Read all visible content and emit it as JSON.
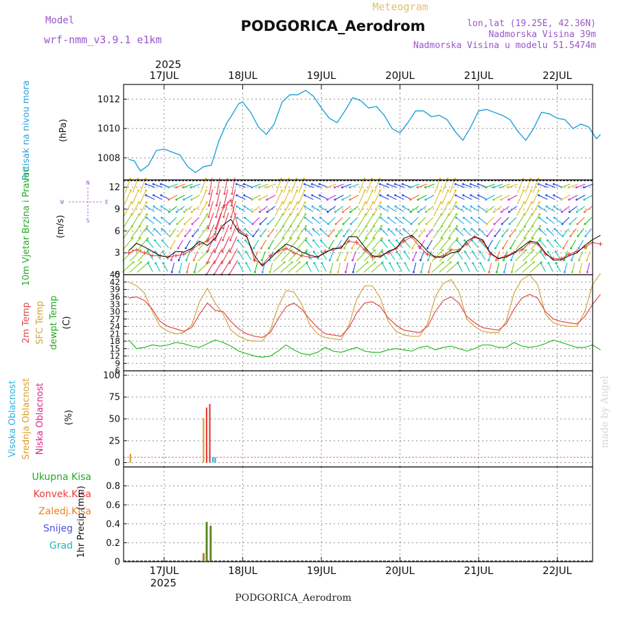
{
  "header": {
    "model_label": "Model",
    "model_name": "wrf-nmm_v3.9.1 e1km",
    "station": "PODGORICA_Aerodrom",
    "kind": "Meteogram",
    "lonlat": "lon,lat (19.25E, 42.36N)",
    "altitude": "Nadmorska Visina 39m",
    "model_altitude": "Nadmorska Visina u modelu 51.5474m"
  },
  "footer": {
    "station": "PODGORICA_Aerodrom"
  },
  "watermark": "made by Angel",
  "colors": {
    "pressure": "#1ea0dc",
    "wind_speed": "#000000",
    "gust": "#e83a3a",
    "t2m": "#e04848",
    "sfc": "#d2a33c",
    "dewpt": "#22bb22",
    "high_cloud": "#29b0e0",
    "mid_cloud": "#d8a030",
    "low_cloud": "#e83a3a",
    "total_rain": "#3cb53c",
    "conv_rain": "#e83a3a",
    "frozen": "#f08020",
    "snow": "#5050dd",
    "graupel": "#20b8b0"
  },
  "chart_data": [
    {
      "type": "line",
      "panel": "pressure",
      "ylabel": "Pritisak na nivou mora",
      "unit": "(hPa)",
      "ylim": [
        1006.5,
        1013
      ],
      "yticks": [
        "1008",
        "1010",
        "1012"
      ],
      "top_axis": {
        "year": "2025",
        "days": [
          "17JUL",
          "18JUL",
          "19JUL",
          "20JUL",
          "21JUL",
          "22JUL"
        ]
      },
      "grid": true,
      "x": [
        -0.45,
        -0.38,
        -0.3,
        -0.2,
        -0.1,
        0.0,
        0.05,
        0.1,
        0.2,
        0.3,
        0.4,
        0.5,
        0.6,
        0.7,
        0.75,
        0.8,
        0.85,
        0.95,
        1.0,
        1.1,
        1.2,
        1.3,
        1.4,
        1.5,
        1.6,
        1.7,
        1.8,
        1.9,
        2.0,
        2.1,
        2.2,
        2.3,
        2.4,
        2.5,
        2.6,
        2.7,
        2.8,
        2.9,
        3.0,
        3.1,
        3.2,
        3.3,
        3.4,
        3.5,
        3.6,
        3.7,
        3.8,
        3.9,
        4.0,
        4.1,
        4.2,
        4.3,
        4.4,
        4.5,
        4.6,
        4.7,
        4.8,
        4.9,
        5.0,
        5.1,
        5.2,
        5.3,
        5.4,
        5.5,
        5.55
      ],
      "series": [
        {
          "values": [
            1007.9,
            1007.8,
            1007.1,
            1007.5,
            1008.5,
            1008.6,
            1008.5,
            1008.4,
            1008.2,
            1007.4,
            1007.0,
            1007.4,
            1007.5,
            1009.2,
            1009.8,
            1010.4,
            1010.8,
            1011.7,
            1011.8,
            1011.1,
            1010.1,
            1009.6,
            1010.3,
            1011.8,
            1012.3,
            1012.3,
            1012.6,
            1012.2,
            1011.4,
            1010.7,
            1010.4,
            1011.2,
            1012.1,
            1011.9,
            1011.4,
            1011.5,
            1010.9,
            1010.0,
            1009.7,
            1010.4,
            1011.2,
            1011.2,
            1010.8,
            1010.9,
            1010.6,
            1009.8,
            1009.2,
            1010.1,
            1011.2,
            1011.3,
            1011.1,
            1010.9,
            1010.6,
            1009.8,
            1009.2,
            1010.0,
            1011.1,
            1011.0,
            1010.7,
            1010.6,
            1010.0,
            1010.3,
            1010.1,
            1009.3,
            1009.6
          ]
        }
      ]
    },
    {
      "type": "line",
      "panel": "wind",
      "ylabel": "10m Vjetar Brzina i Pravac",
      "unit": "(m/s)",
      "compass": {
        "n": "N",
        "s": "S",
        "e": "E",
        "w": "W"
      },
      "ylim": [
        0,
        13
      ],
      "yticks": [
        "0",
        "3",
        "6",
        "9",
        "12"
      ],
      "grid": true,
      "x": [
        -0.45,
        -0.35,
        -0.25,
        -0.15,
        -0.05,
        0.05,
        0.15,
        0.25,
        0.35,
        0.45,
        0.55,
        0.65,
        0.75,
        0.85,
        0.95,
        1.05,
        1.15,
        1.25,
        1.35,
        1.45,
        1.55,
        1.65,
        1.75,
        1.85,
        1.95,
        2.05,
        2.15,
        2.25,
        2.35,
        2.45,
        2.55,
        2.65,
        2.75,
        2.85,
        2.95,
        3.05,
        3.15,
        3.25,
        3.35,
        3.45,
        3.55,
        3.65,
        3.75,
        3.85,
        3.95,
        4.05,
        4.15,
        4.25,
        4.35,
        4.45,
        4.55,
        4.65,
        4.75,
        4.85,
        4.95,
        5.05,
        5.15,
        5.25,
        5.35,
        5.45,
        5.55
      ],
      "series": [
        {
          "values": [
            3.3,
            4.3,
            3.8,
            3.2,
            2.6,
            2.4,
            3.2,
            3.1,
            3.6,
            4.6,
            4.0,
            5.0,
            6.8,
            7.6,
            5.8,
            5.2,
            2.6,
            1.2,
            2.2,
            3.3,
            4.2,
            3.8,
            3.1,
            2.7,
            2.4,
            3.0,
            3.6,
            3.6,
            5.2,
            5.2,
            3.8,
            2.6,
            2.4,
            3.2,
            3.6,
            5.0,
            5.4,
            4.4,
            3.2,
            2.4,
            2.4,
            3.0,
            3.2,
            4.6,
            5.2,
            4.8,
            3.0,
            2.2,
            2.4,
            3.0,
            3.8,
            4.6,
            4.4,
            3.0,
            2.0,
            2.0,
            2.6,
            3.0,
            4.0,
            4.8,
            5.4
          ]
        },
        {
          "values": [
            3.0,
            3.4,
            3.0,
            2.6,
            2.6,
            2.4,
            2.6,
            2.8,
            3.4,
            4.2,
            4.6,
            5.6,
            9.2,
            10.2,
            6.2,
            5.4,
            2.0,
            1.4,
            2.6,
            3.2,
            3.6,
            3.0,
            2.6,
            2.4,
            2.4,
            3.2,
            3.4,
            3.8,
            4.6,
            4.4,
            3.4,
            2.4,
            2.6,
            3.0,
            3.6,
            4.6,
            5.2,
            3.8,
            2.8,
            2.4,
            2.6,
            3.4,
            3.4,
            4.2,
            5.2,
            4.6,
            2.8,
            2.2,
            2.6,
            3.0,
            3.4,
            4.4,
            4.2,
            2.8,
            2.2,
            2.2,
            2.8,
            3.2,
            3.8,
            4.4,
            4.2
          ]
        }
      ]
    },
    {
      "type": "line",
      "panel": "temperature",
      "ylabel_t2m": "2m Temp",
      "ylabel_sfc": "SFC Temp",
      "ylabel_dewpt": "dewpt Temp",
      "unit": "(C)",
      "ylim": [
        6,
        45
      ],
      "yticks": [
        "6",
        "9",
        "12",
        "15",
        "18",
        "21",
        "24",
        "27",
        "30",
        "33",
        "36",
        "39",
        "42",
        "45"
      ],
      "grid": true,
      "x": [
        -0.45,
        -0.35,
        -0.25,
        -0.15,
        -0.05,
        0.05,
        0.15,
        0.25,
        0.35,
        0.45,
        0.55,
        0.65,
        0.75,
        0.85,
        0.95,
        1.05,
        1.15,
        1.25,
        1.35,
        1.45,
        1.55,
        1.65,
        1.75,
        1.85,
        1.95,
        2.05,
        2.15,
        2.25,
        2.35,
        2.45,
        2.55,
        2.65,
        2.75,
        2.85,
        2.95,
        3.05,
        3.15,
        3.25,
        3.35,
        3.45,
        3.55,
        3.65,
        3.75,
        3.85,
        3.95,
        4.05,
        4.15,
        4.25,
        4.35,
        4.45,
        4.55,
        4.65,
        4.75,
        4.85,
        4.95,
        5.05,
        5.15,
        5.25,
        5.35,
        5.45,
        5.55
      ],
      "series": [
        {
          "name": "2m Temp",
          "values": [
            35.5,
            36.0,
            34.5,
            31.0,
            26.0,
            24.0,
            23.0,
            22.0,
            23.5,
            29.0,
            33.5,
            30.5,
            30.0,
            26.0,
            23.0,
            21.0,
            20.0,
            19.5,
            21.5,
            27.0,
            32.0,
            33.5,
            31.0,
            27.0,
            23.5,
            21.0,
            20.5,
            20.0,
            23.5,
            29.5,
            33.5,
            34.0,
            32.0,
            27.5,
            24.5,
            22.5,
            22.0,
            21.5,
            24.0,
            30.0,
            34.5,
            36.0,
            33.5,
            28.0,
            25.5,
            23.5,
            23.0,
            22.5,
            25.0,
            31.0,
            35.5,
            37.0,
            35.5,
            30.0,
            27.0,
            26.0,
            25.5,
            25.0,
            28.0,
            33.0,
            37.0
          ]
        },
        {
          "name": "SFC Temp",
          "values": [
            42.0,
            40.5,
            37.5,
            30.0,
            24.0,
            22.0,
            21.0,
            21.5,
            24.5,
            34.0,
            39.5,
            33.5,
            29.0,
            22.5,
            20.0,
            18.5,
            18.0,
            18.0,
            22.5,
            32.0,
            38.5,
            38.0,
            33.0,
            25.0,
            21.0,
            19.5,
            19.0,
            18.5,
            24.5,
            35.0,
            40.5,
            40.5,
            35.5,
            26.0,
            22.0,
            20.5,
            20.0,
            20.0,
            25.0,
            36.0,
            41.5,
            43.0,
            38.0,
            27.0,
            24.0,
            22.0,
            21.5,
            21.5,
            26.0,
            37.5,
            43.0,
            45.0,
            41.0,
            29.0,
            25.5,
            24.5,
            24.0,
            24.0,
            30.0,
            41.0,
            45.5
          ]
        },
        {
          "name": "dewpt Temp",
          "values": [
            18.5,
            15.0,
            15.5,
            16.5,
            16.0,
            16.5,
            17.5,
            17.0,
            16.0,
            15.5,
            17.0,
            18.5,
            17.5,
            16.0,
            14.0,
            13.0,
            12.0,
            11.5,
            12.0,
            14.0,
            16.5,
            14.5,
            13.0,
            12.5,
            13.5,
            15.5,
            14.0,
            13.5,
            14.5,
            15.5,
            14.0,
            13.5,
            13.5,
            14.5,
            15.0,
            14.5,
            14.0,
            15.5,
            16.0,
            14.5,
            15.5,
            16.0,
            15.0,
            14.0,
            15.0,
            16.5,
            16.5,
            15.5,
            15.5,
            17.5,
            16.0,
            15.5,
            16.0,
            17.0,
            18.5,
            17.5,
            16.5,
            15.5,
            15.5,
            16.5,
            14.5
          ]
        }
      ]
    },
    {
      "type": "bar",
      "panel": "cloud",
      "ylabel_high": "Visoka Oblacnost",
      "ylabel_mid": "Srednja Oblacnost",
      "ylabel_low": "Niska Oblacnost",
      "unit": "(%)",
      "ylim": [
        -5,
        105
      ],
      "yticks": [
        "0",
        "25",
        "50",
        "75",
        "100"
      ],
      "grid": true,
      "series": [
        {
          "name": "Srednja Oblacnost",
          "x": [
            -0.43,
            0.5
          ],
          "values": [
            10,
            51
          ]
        },
        {
          "name": "Niska Oblacnost",
          "x": [
            0.54,
            0.58
          ],
          "values": [
            63,
            67
          ]
        },
        {
          "name": "Visoka Oblacnost",
          "x": [
            0.62,
            0.65
          ],
          "values": [
            6,
            6
          ]
        }
      ]
    },
    {
      "type": "bar",
      "panel": "precip",
      "legend": [
        "Ukupna Kisa",
        "Konvek.Kisa",
        "Zaledj.Kisa",
        "Snijeg",
        "Grad"
      ],
      "unit": "1hr Precip (mm)",
      "ylim": [
        0,
        1.0
      ],
      "yticks": [
        "0",
        "0.2",
        "0.4",
        "0.6",
        "0.8"
      ],
      "bottom_axis": {
        "year": "2025",
        "days": [
          "17JUL",
          "18JUL",
          "19JUL",
          "20JUL",
          "21JUL",
          "22JUL"
        ]
      },
      "grid": true,
      "series": [
        {
          "name": "Zaledj.Kisa",
          "x": [
            0.5
          ],
          "values": [
            0.09
          ]
        },
        {
          "name": "Ukupna Kisa",
          "x": [
            0.54,
            0.59
          ],
          "values": [
            0.42,
            0.38
          ]
        }
      ]
    }
  ]
}
